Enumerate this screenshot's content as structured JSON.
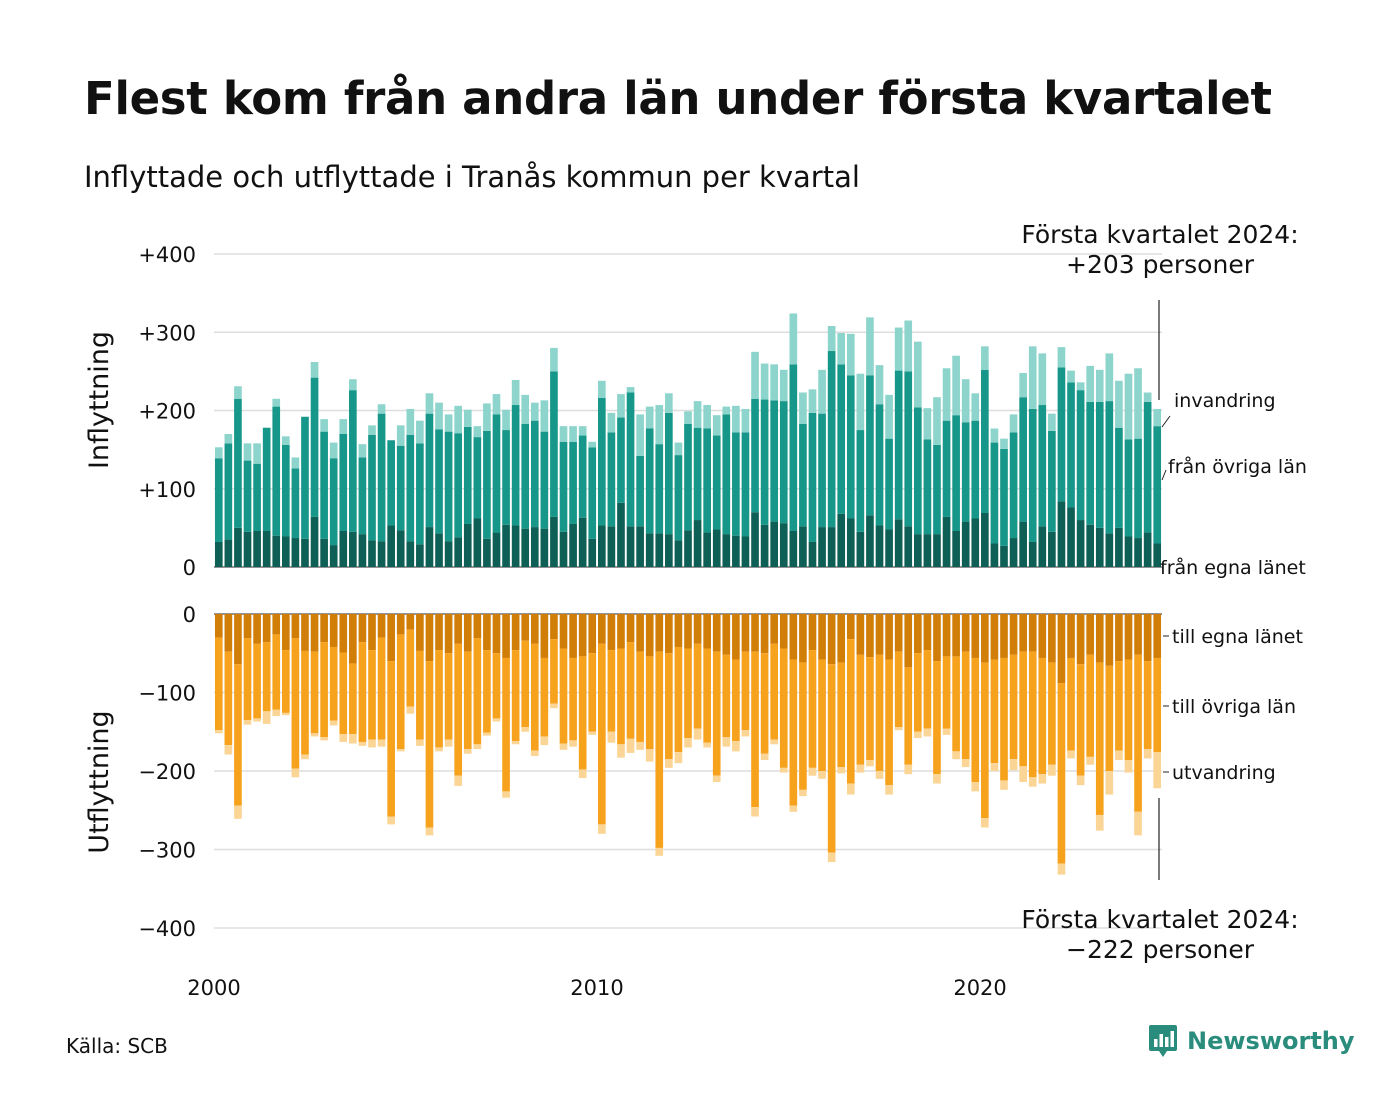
{
  "header": {
    "title": "Flest kom från andra län under första kvartalet",
    "subtitle": "Inflyttade och utflyttade i Tranås kommun per kvartal"
  },
  "footer": {
    "source": "Källa: SCB",
    "brand": "Newsworthy"
  },
  "colors": {
    "in_own": "#0e5f55",
    "in_other": "#169789",
    "in_immig": "#8dd5cc",
    "out_own": "#d17e08",
    "out_other": "#f7a21d",
    "out_emig": "#fbd596",
    "grid": "#dddddd",
    "brand": "#2a8c7c"
  },
  "chart_data": {
    "type": "bar",
    "stacked": true,
    "grid": true,
    "x_ticks": [
      "2000",
      "2010",
      "2020"
    ],
    "panels": [
      {
        "ylabel": "Inflyttning",
        "ylim": [
          0,
          400
        ],
        "y_ticks": [
          "+400",
          "+300",
          "+200",
          "+100",
          "0"
        ],
        "series": [
          {
            "name": "från egna länet",
            "values": [
              32,
              35,
              50,
              45,
              46,
              46,
              40,
              39,
              37,
              36,
              64,
              36,
              28,
              46,
              45,
              42,
              34,
              33,
              53,
              47,
              33,
              29,
              51,
              43,
              33,
              38,
              55,
              62,
              36,
              44,
              54,
              53,
              49,
              51,
              49,
              64,
              45,
              55,
              63,
              36,
              53,
              52,
              82,
              52,
              52,
              43,
              43,
              42,
              34,
              47,
              60,
              44,
              48,
              42,
              40,
              39,
              70,
              54,
              58,
              56,
              46,
              52,
              32,
              51,
              51,
              68,
              62,
              45,
              66,
              53,
              48,
              61,
              52,
              42,
              42,
              42,
              64,
              46,
              58,
              62,
              69,
              30,
              27,
              37,
              58,
              32,
              52,
              45,
              84,
              76,
              60,
              54,
              50,
              43,
              50,
              39,
              37,
              44,
              30
            ]
          },
          {
            "name": "från övriga län",
            "values": [
              107,
              123,
              165,
              91,
              86,
              132,
              165,
              117,
              89,
              156,
              178,
              137,
              111,
              124,
              181,
              98,
              135,
              163,
              109,
              108,
              136,
              129,
              145,
              133,
              140,
              133,
              124,
              104,
              138,
              151,
              121,
              154,
              134,
              136,
              124,
              186,
              115,
              105,
              105,
              117,
              163,
              120,
              109,
              171,
              90,
              134,
              114,
              155,
              109,
              136,
              118,
              133,
              120,
              153,
              132,
              133,
              145,
              160,
              155,
              156,
              213,
              131,
              165,
              145,
              225,
              191,
              183,
              130,
              179,
              155,
              116,
              190,
              198,
              162,
              121,
              114,
              123,
              148,
              127,
              125,
              183,
              129,
              124,
              135,
              159,
              170,
              155,
              129,
              171,
              160,
              166,
              157,
              161,
              169,
              128,
              124,
              127,
              167,
              150
            ]
          },
          {
            "name": "invandring",
            "values": [
              14,
              12,
              16,
              22,
              26,
              0,
              10,
              11,
              14,
              0,
              20,
              16,
              20,
              19,
              14,
              17,
              12,
              12,
              0,
              26,
              33,
              29,
              26,
              34,
              22,
              35,
              22,
              14,
              35,
              26,
              26,
              32,
              37,
              23,
              40,
              30,
              20,
              20,
              12,
              7,
              22,
              25,
              30,
              7,
              53,
              28,
              50,
              25,
              16,
              16,
              34,
              30,
              26,
              10,
              34,
              30,
              60,
              46,
              46,
              40,
              65,
              40,
              30,
              56,
              32,
              40,
              53,
              72,
              74,
              50,
              56,
              55,
              65,
              84,
              40,
              61,
              67,
              76,
              55,
              35,
              30,
              18,
              13,
              23,
              31,
              80,
              66,
              22,
              26,
              15,
              10,
              46,
              41,
              61,
              60,
              84,
              90,
              12,
              22
            ]
          }
        ]
      },
      {
        "ylabel": "Utflyttning",
        "ylim": [
          -400,
          0
        ],
        "y_ticks": [
          "0",
          "−100",
          "−200",
          "−300",
          "−400"
        ],
        "series": [
          {
            "name": "till egna länet",
            "values": [
              -30,
              -48,
              -64,
              -31,
              -38,
              -36,
              -26,
              -46,
              -31,
              -47,
              -48,
              -36,
              -42,
              -49,
              -63,
              -36,
              -46,
              -30,
              -60,
              -26,
              -20,
              -47,
              -60,
              -46,
              -50,
              -38,
              -48,
              -31,
              -46,
              -50,
              -56,
              -46,
              -34,
              -38,
              -56,
              -32,
              -44,
              -56,
              -54,
              -50,
              -38,
              -46,
              -44,
              -36,
              -48,
              -54,
              -48,
              -50,
              -42,
              -44,
              -38,
              -44,
              -48,
              -52,
              -58,
              -48,
              -48,
              -50,
              -38,
              -44,
              -58,
              -62,
              -46,
              -58,
              -64,
              -62,
              -32,
              -52,
              -55,
              -52,
              -58,
              -48,
              -68,
              -50,
              -46,
              -60,
              -54,
              -54,
              -48,
              -56,
              -62,
              -58,
              -56,
              -52,
              -48,
              -48,
              -56,
              -62,
              -88,
              -56,
              -64,
              -52,
              -62,
              -66,
              -60,
              -58,
              -52,
              -60,
              -56
            ]
          },
          {
            "name": "till övriga län",
            "values": [
              -118,
              -119,
              -180,
              -104,
              -95,
              -88,
              -96,
              -80,
              -166,
              -132,
              -104,
              -121,
              -94,
              -104,
              -90,
              -127,
              -114,
              -130,
              -198,
              -146,
              -98,
              -113,
              -212,
              -124,
              -110,
              -168,
              -124,
              -135,
              -105,
              -83,
              -170,
              -116,
              -110,
              -136,
              -100,
              -82,
              -121,
              -105,
              -144,
              -100,
              -230,
              -104,
              -122,
              -123,
              -115,
              -118,
              -250,
              -135,
              -134,
              -114,
              -108,
              -120,
              -158,
              -105,
              -104,
              -100,
              -198,
              -128,
              -122,
              -152,
              -186,
              -162,
              -150,
              -142,
              -240,
              -133,
              -184,
              -140,
              -131,
              -148,
              -160,
              -96,
              -124,
              -100,
              -100,
              -144,
              -92,
              -121,
              -137,
              -158,
              -198,
              -132,
              -156,
              -133,
              -146,
              -160,
              -148,
              -130,
              -230,
              -118,
              -142,
              -130,
              -194,
              -134,
              -114,
              -128,
              -200,
              -112,
              -120
            ]
          },
          {
            "name": "utvandring",
            "values": [
              -4,
              -12,
              -17,
              -6,
              -4,
              -16,
              -8,
              -3,
              -11,
              -6,
              -4,
              -4,
              -6,
              -10,
              -12,
              -5,
              -10,
              -9,
              -10,
              -3,
              -9,
              -8,
              -10,
              -5,
              -9,
              -13,
              -6,
              -6,
              -4,
              -4,
              -8,
              -4,
              -6,
              -7,
              -11,
              -6,
              -8,
              -8,
              -11,
              -4,
              -12,
              -14,
              -17,
              -18,
              -10,
              -16,
              -10,
              -11,
              -14,
              -12,
              -14,
              -6,
              -8,
              -12,
              -13,
              -8,
              -12,
              -8,
              -6,
              -6,
              -8,
              -8,
              -10,
              -10,
              -12,
              -8,
              -14,
              -10,
              -8,
              -10,
              -12,
              -4,
              -12,
              -8,
              -10,
              -12,
              -8,
              -10,
              -10,
              -12,
              -12,
              -10,
              -12,
              -14,
              -20,
              -12,
              -12,
              -14,
              -14,
              -10,
              -12,
              -10,
              -20,
              -30,
              -12,
              -16,
              -30,
              -12,
              -46
            ]
          }
        ]
      }
    ],
    "annotations": {
      "top_line1": "Första kvartalet 2024:",
      "top_line2": "+203 personer",
      "bottom_line1": "Första kvartalet 2024:",
      "bottom_line2": "−222 personer"
    }
  }
}
